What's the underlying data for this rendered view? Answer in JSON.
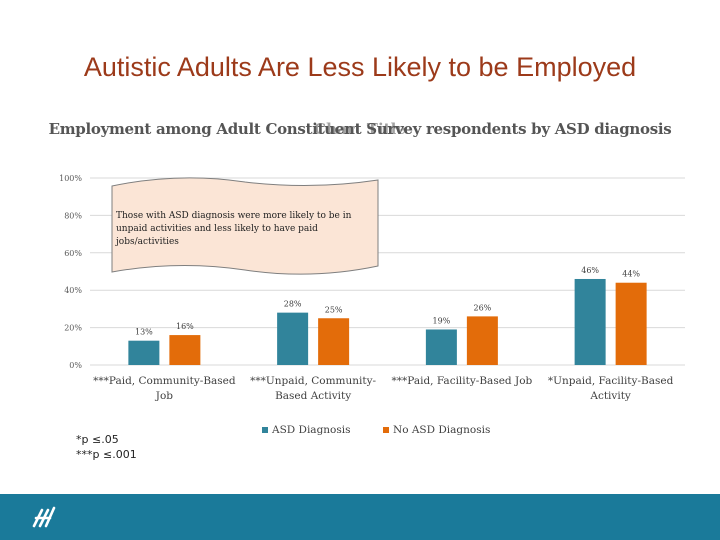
{
  "slide": {
    "title": "Autistic Adults Are Less Likely to be Employed",
    "notes": [
      "*p ≤.05",
      "***p ≤.001"
    ]
  },
  "chart_data": {
    "type": "bar",
    "title": "Employment among Adult Constituent Survey respondents by ASD diagnosis",
    "title_overlay": "Chart Title",
    "categories": [
      [
        "***Paid, Community-Based",
        "Job"
      ],
      [
        "***Unpaid, Community-",
        "Based Activity"
      ],
      [
        "***Paid, Facility-Based Job"
      ],
      [
        "*Unpaid, Facility-Based",
        "Activity"
      ]
    ],
    "series": [
      {
        "name": "ASD Diagnosis",
        "color": "#31849b",
        "values": [
          13,
          28,
          19,
          46
        ]
      },
      {
        "name": "No ASD Diagnosis",
        "color": "#e36c0a",
        "values": [
          16,
          25,
          26,
          44
        ]
      }
    ],
    "ylim": [
      0,
      100
    ],
    "yticks": [
      0,
      20,
      40,
      60,
      80,
      100
    ],
    "ytick_labels": [
      "0%",
      "20%",
      "40%",
      "60%",
      "80%",
      "100%"
    ],
    "legend_position": "bottom",
    "grid": true,
    "callout": {
      "text": [
        "Those with ASD diagnosis were more likely to be in",
        "unpaid activities and less likely to have paid",
        "jobs/activities"
      ]
    }
  }
}
